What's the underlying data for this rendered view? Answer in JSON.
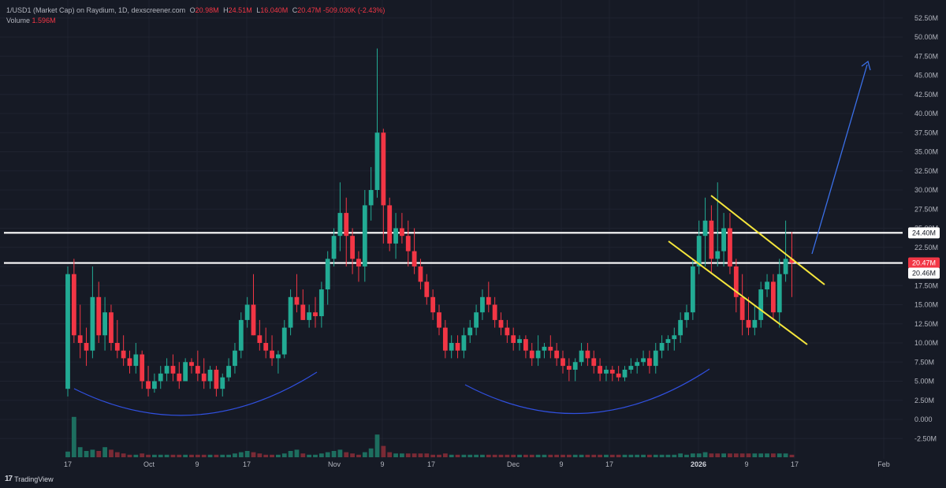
{
  "header": {
    "symbol": "1/USD1 (Market Cap) on Raydium, 1D, dexscreener.com",
    "open_key": "O",
    "open": "20.98M",
    "high_key": "H",
    "high": "24.51M",
    "low_key": "L",
    "low": "16.040M",
    "close_key": "C",
    "close": "20.47M",
    "change": "-509.030K (-2.43%)",
    "volume_label": "Volume",
    "volume": "1.596M"
  },
  "branding": {
    "name": "TradingView"
  },
  "colors": {
    "up": "#22ab94",
    "down": "#f23645",
    "bg": "#161a25",
    "level": "#ffffff",
    "wedge": "#f5e63c",
    "curve": "#3050e0",
    "arrow": "#3a6fe8"
  },
  "chart_data": {
    "type": "candlestick",
    "y_axis": {
      "ticks": [
        "52.50M",
        "50.00M",
        "47.50M",
        "45.00M",
        "42.50M",
        "40.00M",
        "37.50M",
        "35.00M",
        "32.50M",
        "30.00M",
        "27.50M",
        "25.00M",
        "22.50M",
        "20.00M",
        "17.50M",
        "15.00M",
        "12.50M",
        "10.00M",
        "7.50M",
        "5.00M",
        "2.50M",
        "0.000",
        "-2.50M"
      ],
      "range": [
        -2.5,
        52.5
      ],
      "unit": "M"
    },
    "x_axis": {
      "ticks": [
        {
          "label": "17",
          "bold": false
        },
        {
          "label": "Oct",
          "bold": false
        },
        {
          "label": "9",
          "bold": false
        },
        {
          "label": "17",
          "bold": false
        },
        {
          "label": "Nov",
          "bold": false
        },
        {
          "label": "9",
          "bold": false
        },
        {
          "label": "17",
          "bold": false
        },
        {
          "label": "Dec",
          "bold": false
        },
        {
          "label": "9",
          "bold": false
        },
        {
          "label": "17",
          "bold": false
        },
        {
          "label": "2026",
          "bold": true
        },
        {
          "label": "9",
          "bold": false
        },
        {
          "label": "17",
          "bold": false
        },
        {
          "label": "Feb",
          "bold": false
        }
      ]
    },
    "levels": [
      {
        "value": 24.4,
        "label": "24.40M"
      },
      {
        "value": 20.46,
        "label": "20.46M"
      }
    ],
    "last_price": {
      "value": 20.47,
      "label": "20.47M"
    },
    "candles": [
      [
        4,
        20,
        3,
        19
      ],
      [
        19,
        21,
        10,
        11
      ],
      [
        11,
        15,
        8,
        10
      ],
      [
        10,
        12,
        7,
        9
      ],
      [
        9,
        20,
        8,
        16
      ],
      [
        16,
        18,
        10,
        11
      ],
      [
        11,
        16,
        9,
        14
      ],
      [
        14,
        15,
        9,
        10
      ],
      [
        10,
        13,
        8,
        9
      ],
      [
        9,
        11,
        7,
        8
      ],
      [
        8,
        9,
        6,
        7
      ],
      [
        7,
        10,
        6,
        8.5
      ],
      [
        8.5,
        9,
        4,
        5
      ],
      [
        5,
        7,
        3,
        4
      ],
      [
        4,
        6,
        3.5,
        5
      ],
      [
        5,
        7,
        4,
        6
      ],
      [
        6,
        8,
        5,
        7
      ],
      [
        7,
        8.5,
        5,
        6
      ],
      [
        6,
        7.5,
        4,
        5
      ],
      [
        5,
        8,
        5,
        7.5
      ],
      [
        7.5,
        8,
        6,
        7
      ],
      [
        7,
        9,
        5,
        6
      ],
      [
        6,
        8,
        4,
        5
      ],
      [
        5,
        7,
        4,
        6.5
      ],
      [
        6.5,
        7,
        3,
        4
      ],
      [
        4,
        6,
        3,
        5.5
      ],
      [
        5.5,
        8,
        5,
        7
      ],
      [
        7,
        10,
        6,
        9
      ],
      [
        9,
        14,
        8,
        13
      ],
      [
        13,
        16,
        12,
        15
      ],
      [
        15,
        19,
        11,
        11
      ],
      [
        11,
        13,
        9,
        10
      ],
      [
        10,
        12,
        8,
        9
      ],
      [
        9,
        11,
        7,
        8
      ],
      [
        8,
        9,
        6,
        8.5
      ],
      [
        8.5,
        13,
        8,
        12
      ],
      [
        12,
        17,
        11,
        16
      ],
      [
        16,
        19,
        14,
        15
      ],
      [
        15,
        17,
        13,
        13
      ],
      [
        13,
        15,
        12,
        14
      ],
      [
        14,
        16,
        12,
        13.5
      ],
      [
        13.5,
        18,
        12,
        17
      ],
      [
        17,
        22,
        15,
        21
      ],
      [
        21,
        25,
        20,
        24
      ],
      [
        24,
        31,
        22,
        27
      ],
      [
        27,
        29,
        20,
        24
      ],
      [
        24,
        25,
        19,
        21
      ],
      [
        21,
        22,
        18,
        20
      ],
      [
        20,
        30,
        18,
        28
      ],
      [
        28,
        33,
        26,
        30
      ],
      [
        30,
        48.5,
        29,
        37.5
      ],
      [
        37.5,
        38,
        23,
        28
      ],
      [
        28,
        29,
        22,
        23
      ],
      [
        23,
        27,
        21,
        25
      ],
      [
        25,
        27,
        23,
        24
      ],
      [
        24,
        26,
        20,
        22
      ],
      [
        22,
        25,
        19,
        20
      ],
      [
        20,
        21,
        17,
        18
      ],
      [
        18,
        19,
        15,
        16
      ],
      [
        16,
        17,
        13,
        14
      ],
      [
        14,
        15,
        11,
        12
      ],
      [
        12,
        13,
        8,
        9
      ],
      [
        9,
        11,
        8,
        10
      ],
      [
        10,
        11,
        8,
        9
      ],
      [
        9,
        12,
        8,
        11
      ],
      [
        11,
        13,
        10,
        12
      ],
      [
        12,
        15,
        11,
        14
      ],
      [
        14,
        17,
        13,
        16
      ],
      [
        16,
        18,
        14,
        15
      ],
      [
        15,
        16,
        12,
        13
      ],
      [
        13,
        14,
        11,
        12
      ],
      [
        12,
        13,
        10,
        11
      ],
      [
        11,
        12,
        9,
        10
      ],
      [
        10,
        11,
        9,
        10.5
      ],
      [
        10.5,
        11,
        8,
        9
      ],
      [
        9,
        10,
        7,
        8
      ],
      [
        8,
        11,
        7,
        9
      ],
      [
        9,
        10,
        8,
        9.5
      ],
      [
        9.5,
        11,
        8,
        9
      ],
      [
        9,
        10,
        7,
        8
      ],
      [
        8,
        9,
        6,
        7
      ],
      [
        7,
        8,
        5,
        6.5
      ],
      [
        6.5,
        8,
        5,
        7.5
      ],
      [
        7.5,
        10,
        7,
        9
      ],
      [
        9,
        10,
        7,
        8
      ],
      [
        8,
        9,
        6,
        7
      ],
      [
        7,
        8,
        5,
        6
      ],
      [
        6,
        7,
        5,
        6.5
      ],
      [
        6.5,
        7,
        5,
        6
      ],
      [
        6,
        7,
        5,
        5.5
      ],
      [
        5.5,
        7,
        5,
        6.5
      ],
      [
        6.5,
        8,
        6,
        7
      ],
      [
        7,
        8,
        6,
        7.5
      ],
      [
        7.5,
        9,
        7,
        8
      ],
      [
        8,
        9,
        6,
        7
      ],
      [
        7,
        10,
        6,
        9
      ],
      [
        9,
        11,
        8,
        10
      ],
      [
        10,
        11,
        9,
        10.5
      ],
      [
        10.5,
        12,
        9,
        11
      ],
      [
        11,
        14,
        10,
        13
      ],
      [
        13,
        15,
        12,
        14
      ],
      [
        14,
        21,
        13,
        20
      ],
      [
        20,
        26,
        19,
        24
      ],
      [
        24,
        29,
        20,
        26
      ],
      [
        26,
        28,
        19,
        21
      ],
      [
        21,
        31,
        20,
        22
      ],
      [
        22,
        27,
        20,
        25
      ],
      [
        25,
        27,
        19,
        20
      ],
      [
        20,
        21,
        14,
        16
      ],
      [
        16,
        19,
        11,
        13
      ],
      [
        13,
        16,
        11,
        12
      ],
      [
        12,
        15,
        11,
        13
      ],
      [
        13,
        18,
        12,
        17
      ],
      [
        17,
        19,
        16,
        18
      ],
      [
        18,
        19,
        13,
        14
      ],
      [
        14,
        21,
        12,
        19
      ],
      [
        19,
        26,
        18,
        21
      ],
      [
        21,
        24.5,
        16,
        20.47
      ]
    ],
    "volume": [
      [
        4.5,
        1
      ],
      [
        32,
        1
      ],
      [
        8,
        1
      ],
      [
        5,
        1
      ],
      [
        6,
        1
      ],
      [
        5,
        0
      ],
      [
        8,
        1
      ],
      [
        6,
        0
      ],
      [
        4,
        0
      ],
      [
        3,
        0
      ],
      [
        2,
        0
      ],
      [
        2,
        1
      ],
      [
        3,
        0
      ],
      [
        2,
        0
      ],
      [
        2,
        1
      ],
      [
        2,
        1
      ],
      [
        2,
        1
      ],
      [
        2,
        0
      ],
      [
        2,
        0
      ],
      [
        2,
        1
      ],
      [
        2,
        0
      ],
      [
        2,
        0
      ],
      [
        2,
        0
      ],
      [
        2,
        1
      ],
      [
        2,
        0
      ],
      [
        2,
        1
      ],
      [
        2,
        1
      ],
      [
        3,
        1
      ],
      [
        4,
        1
      ],
      [
        5,
        1
      ],
      [
        4,
        0
      ],
      [
        3,
        0
      ],
      [
        2,
        0
      ],
      [
        2,
        0
      ],
      [
        2,
        1
      ],
      [
        3,
        1
      ],
      [
        5,
        1
      ],
      [
        6,
        1
      ],
      [
        3,
        0
      ],
      [
        2,
        1
      ],
      [
        2,
        1
      ],
      [
        3,
        1
      ],
      [
        4,
        1
      ],
      [
        5,
        1
      ],
      [
        6,
        1
      ],
      [
        4,
        0
      ],
      [
        3,
        0
      ],
      [
        2,
        0
      ],
      [
        4,
        1
      ],
      [
        7,
        1
      ],
      [
        18,
        1
      ],
      [
        9,
        0
      ],
      [
        4,
        0
      ],
      [
        3,
        1
      ],
      [
        3,
        1
      ],
      [
        3,
        0
      ],
      [
        3,
        0
      ],
      [
        3,
        0
      ],
      [
        3,
        0
      ],
      [
        2,
        0
      ],
      [
        2,
        0
      ],
      [
        3,
        0
      ],
      [
        2,
        1
      ],
      [
        2,
        0
      ],
      [
        2,
        1
      ],
      [
        2,
        1
      ],
      [
        2,
        1
      ],
      [
        2,
        1
      ],
      [
        2,
        0
      ],
      [
        2,
        0
      ],
      [
        2,
        0
      ],
      [
        2,
        0
      ],
      [
        2,
        0
      ],
      [
        2,
        1
      ],
      [
        2,
        0
      ],
      [
        2,
        0
      ],
      [
        2,
        1
      ],
      [
        2,
        1
      ],
      [
        2,
        0
      ],
      [
        2,
        0
      ],
      [
        2,
        0
      ],
      [
        2,
        0
      ],
      [
        2,
        1
      ],
      [
        2,
        1
      ],
      [
        2,
        0
      ],
      [
        2,
        0
      ],
      [
        2,
        0
      ],
      [
        2,
        1
      ],
      [
        2,
        0
      ],
      [
        2,
        0
      ],
      [
        2,
        1
      ],
      [
        2,
        1
      ],
      [
        2,
        1
      ],
      [
        2,
        1
      ],
      [
        2,
        0
      ],
      [
        2,
        1
      ],
      [
        2,
        1
      ],
      [
        2,
        1
      ],
      [
        2,
        1
      ],
      [
        3,
        1
      ],
      [
        2,
        1
      ],
      [
        3,
        1
      ],
      [
        3,
        1
      ],
      [
        4,
        1
      ],
      [
        3,
        0
      ],
      [
        3,
        0
      ],
      [
        3,
        1
      ],
      [
        3,
        0
      ],
      [
        3,
        0
      ],
      [
        3,
        0
      ],
      [
        3,
        0
      ],
      [
        3,
        1
      ],
      [
        3,
        1
      ],
      [
        3,
        1
      ],
      [
        3,
        0
      ],
      [
        3,
        1
      ],
      [
        3,
        1
      ],
      [
        2,
        0
      ]
    ]
  }
}
